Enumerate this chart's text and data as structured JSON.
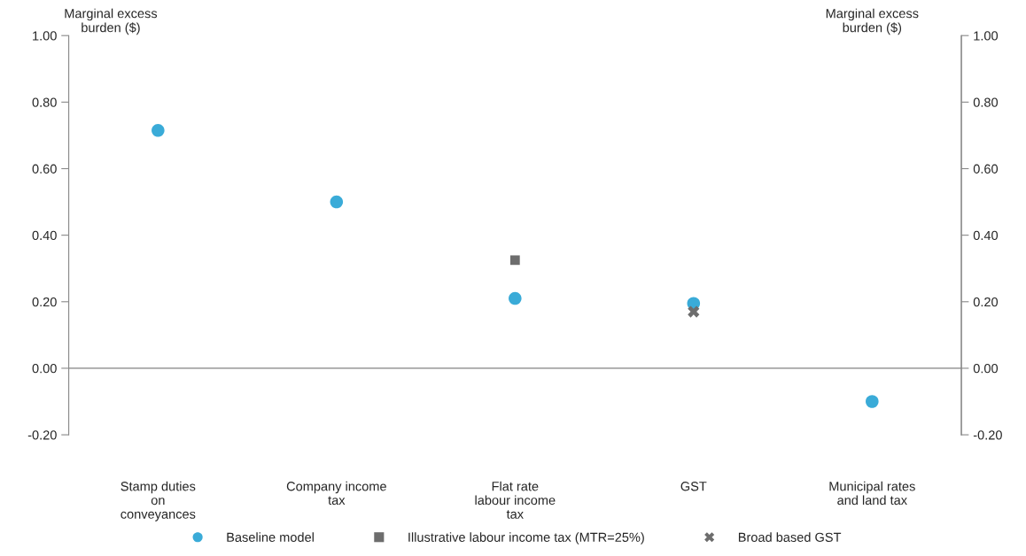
{
  "chart_data": {
    "type": "scatter",
    "categories": [
      "Stamp duties\non\nconveyances",
      "Company income\ntax",
      "Flat rate\nlabour income\ntax",
      "GST",
      "Municipal rates\nand land tax"
    ],
    "series": [
      {
        "name": "Baseline model",
        "color": "#3aabd8",
        "marker": "circle",
        "values": [
          0.715,
          0.5,
          0.21,
          0.195,
          -0.1
        ]
      },
      {
        "name": "Illustrative labour income tax (MTR=25%)",
        "color": "#6d6d6d",
        "marker": "square",
        "values": [
          null,
          null,
          0.325,
          null,
          null
        ]
      },
      {
        "name": "Broad based GST",
        "color": "#6d6d6d",
        "marker": "cross",
        "values": [
          null,
          null,
          null,
          0.17,
          null
        ]
      }
    ],
    "ylabel": "Marginal excess\nburden ($)",
    "y2label": "Marginal excess\nburden ($)",
    "ylim": [
      -0.2,
      1.0
    ],
    "yticks": [
      {
        "value": -0.2,
        "label": "-0.20"
      },
      {
        "value": 0,
        "label": "0.00"
      },
      {
        "value": 0.2,
        "label": "0.20"
      },
      {
        "value": 0.4,
        "label": "0.40"
      },
      {
        "value": 0.6,
        "label": "0.60"
      },
      {
        "value": 0.8,
        "label": "0.80"
      },
      {
        "value": 1.0,
        "label": "1.00"
      }
    ],
    "y2lim": [
      -0.2,
      1.0
    ],
    "y2ticks": [
      {
        "value": -0.2,
        "label": "-0.20"
      },
      {
        "value": 0,
        "label": "0.00"
      },
      {
        "value": 0.2,
        "label": "0.20"
      },
      {
        "value": 0.4,
        "label": "0.40"
      },
      {
        "value": 0.6,
        "label": "0.60"
      },
      {
        "value": 0.8,
        "label": "0.80"
      },
      {
        "value": 1.0,
        "label": "1.00"
      }
    ],
    "ref_lines": [
      {
        "axis": "y",
        "value": 0,
        "color": "#a6a6a6"
      }
    ],
    "grid": false,
    "legend": "bottom"
  }
}
